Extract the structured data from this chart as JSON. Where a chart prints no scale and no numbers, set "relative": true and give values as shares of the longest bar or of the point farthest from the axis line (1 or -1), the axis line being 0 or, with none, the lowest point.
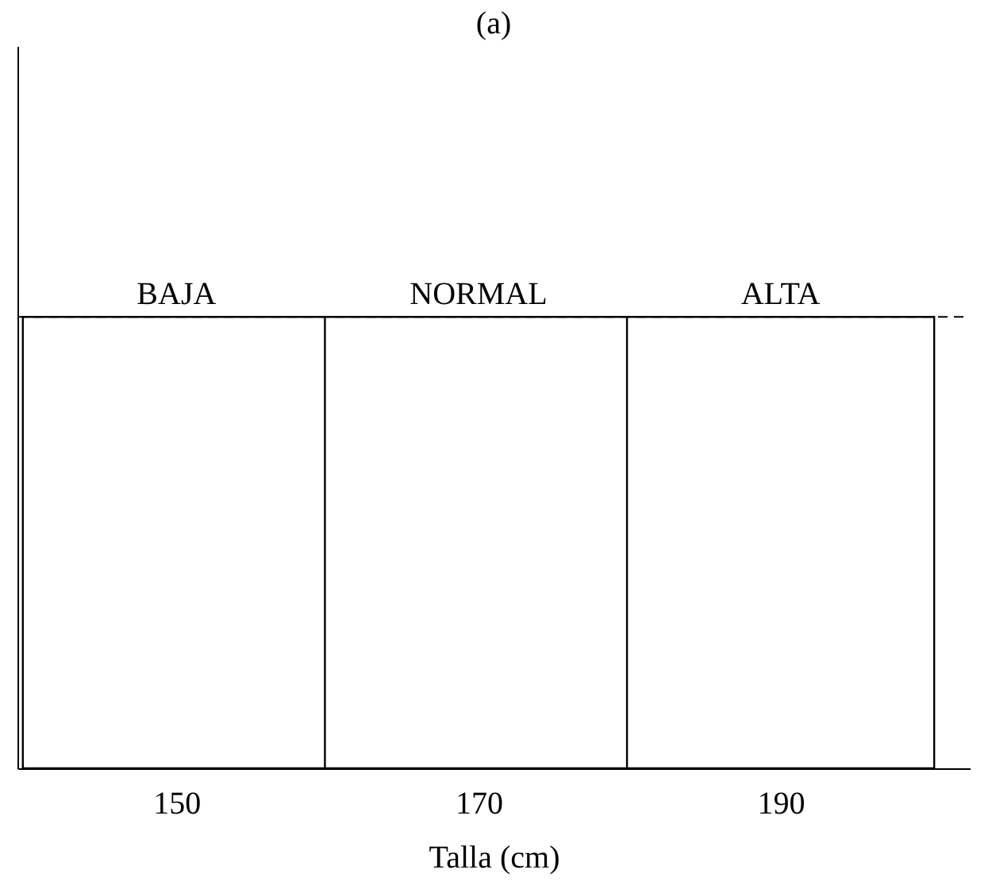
{
  "chart_data": {
    "type": "bar",
    "title": "(a)",
    "xlabel": "Talla (cm)",
    "x": [
      150,
      170,
      190
    ],
    "values": [
      1,
      1,
      1
    ],
    "relative": true,
    "color": "#000000",
    "xlim": [
      140,
      202
    ],
    "xticks": [
      150,
      170,
      190
    ],
    "grid": false,
    "ref_lines": [
      {
        "axis": "y",
        "value": 1,
        "line_style": "dashed",
        "color": "#000000"
      }
    ],
    "annotations": [
      {
        "text": "BAJA",
        "x": 150,
        "y": 1
      },
      {
        "text": "NORMAL",
        "x": 170,
        "y": 1
      },
      {
        "text": "ALTA",
        "x": 190,
        "y": 1
      }
    ]
  }
}
